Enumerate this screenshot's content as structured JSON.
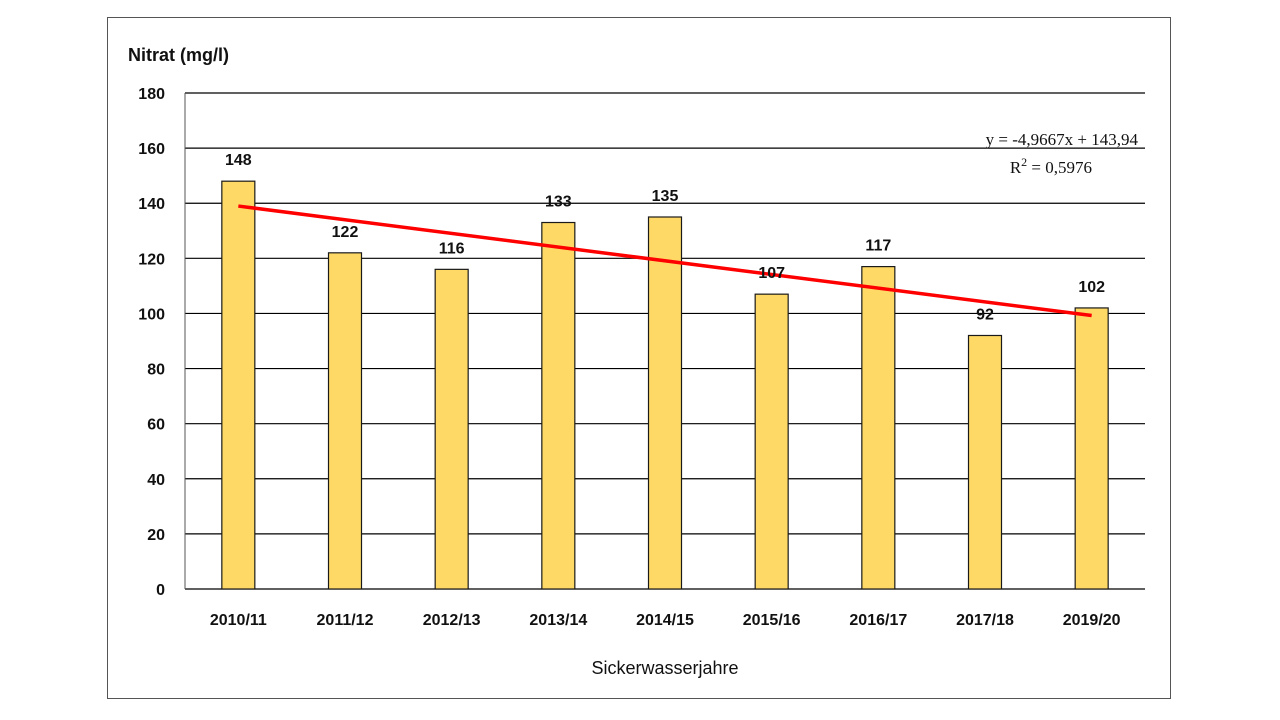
{
  "chart_data": {
    "type": "bar",
    "title": "",
    "ylabel": "Nitrat (mg/l)",
    "xlabel": "Sickerwasserjahre",
    "categories": [
      "2010/11",
      "2011/12",
      "2012/13",
      "2013/14",
      "2014/15",
      "2015/16",
      "2016/17",
      "2017/18",
      "2019/20"
    ],
    "values": [
      148,
      122,
      116,
      133,
      135,
      107,
      117,
      92,
      102
    ],
    "ylim": [
      0,
      180
    ],
    "yticks": [
      0,
      20,
      40,
      60,
      80,
      100,
      120,
      140,
      160,
      180
    ],
    "grid": true,
    "legend": "none",
    "bar_color": "#FFD966",
    "bar_edge_color": "#1a1a1a",
    "trendline": {
      "type": "linear",
      "slope": -4.9667,
      "intercept": 143.94,
      "color": "#FF0000",
      "equation": "y = -4,9667x + 143,94",
      "r2_prefix": "R",
      "r2_sup": "2",
      "r2_suffix": " = 0,5976"
    }
  }
}
